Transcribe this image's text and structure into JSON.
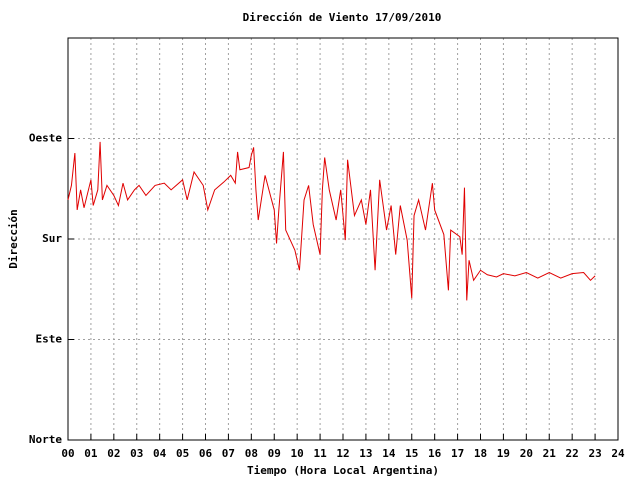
{
  "chart_data": {
    "type": "line",
    "title": "Dirección de Viento 17/09/2010",
    "x_label": "Tiempo (Hora Local Argentina)",
    "y_label": "Dirección",
    "xlim": [
      0,
      24
    ],
    "ylim": [
      0,
      360
    ],
    "xticks": [
      {
        "value": 0,
        "label": "00"
      },
      {
        "value": 1,
        "label": "01"
      },
      {
        "value": 2,
        "label": "02"
      },
      {
        "value": 3,
        "label": "03"
      },
      {
        "value": 4,
        "label": "04"
      },
      {
        "value": 5,
        "label": "05"
      },
      {
        "value": 6,
        "label": "06"
      },
      {
        "value": 7,
        "label": "07"
      },
      {
        "value": 8,
        "label": "08"
      },
      {
        "value": 9,
        "label": "09"
      },
      10,
      11,
      12,
      13,
      14,
      15,
      16,
      17,
      18,
      19,
      20,
      21,
      22,
      23,
      24
    ],
    "yticks": [
      {
        "value": 0,
        "label": "Norte"
      },
      {
        "value": 90,
        "label": "Este"
      },
      {
        "value": 180,
        "label": "Sur"
      },
      {
        "value": 270,
        "label": "Oeste"
      }
    ],
    "grid": true,
    "series": [
      {
        "color": "#e00000",
        "x": [
          0,
          0.15,
          0.3,
          0.4,
          0.55,
          0.7,
          1.0,
          1.1,
          1.3,
          1.4,
          1.5,
          1.7,
          2.0,
          2.2,
          2.4,
          2.6,
          2.9,
          3.1,
          3.4,
          3.8,
          4.2,
          4.5,
          5.0,
          5.2,
          5.5,
          5.9,
          6.1,
          6.4,
          6.8,
          7.1,
          7.3,
          7.4,
          7.5,
          7.9,
          8.0,
          8.1,
          8.2,
          8.3,
          8.6,
          9.0,
          9.1,
          9.2,
          9.4,
          9.5,
          9.9,
          10.1,
          10.3,
          10.5,
          10.7,
          11.0,
          11.1,
          11.2,
          11.4,
          11.7,
          11.9,
          12.1,
          12.2,
          12.5,
          12.8,
          13.0,
          13.2,
          13.4,
          13.6,
          13.9,
          14.1,
          14.3,
          14.5,
          14.8,
          15.0,
          15.1,
          15.3,
          15.6,
          15.9,
          16.0,
          16.4,
          16.6,
          16.7,
          17.1,
          17.2,
          17.3,
          17.4,
          17.5,
          17.7,
          18.0,
          18.3,
          18.7,
          19.0,
          19.5,
          20.0,
          20.5,
          21.0,
          21.5,
          22.0,
          22.5,
          22.8,
          23.0
        ],
        "values": [
          215,
          228,
          257,
          206,
          224,
          208,
          233,
          210,
          224,
          267,
          215,
          228,
          219,
          210,
          230,
          215,
          224,
          228,
          219,
          228,
          230,
          224,
          233,
          215,
          240,
          228,
          206,
          224,
          231,
          237,
          230,
          258,
          242,
          244,
          255,
          262,
          224,
          197,
          237,
          206,
          176,
          206,
          258,
          188,
          170,
          152,
          215,
          228,
          193,
          166,
          224,
          253,
          224,
          197,
          224,
          179,
          251,
          201,
          215,
          193,
          224,
          152,
          233,
          188,
          210,
          166,
          210,
          179,
          127,
          201,
          215,
          188,
          230,
          206,
          184,
          134,
          188,
          182,
          166,
          226,
          125,
          161,
          143,
          152,
          148,
          146,
          149,
          147,
          150,
          145,
          150,
          145,
          149,
          150,
          143,
          147
        ]
      }
    ]
  }
}
